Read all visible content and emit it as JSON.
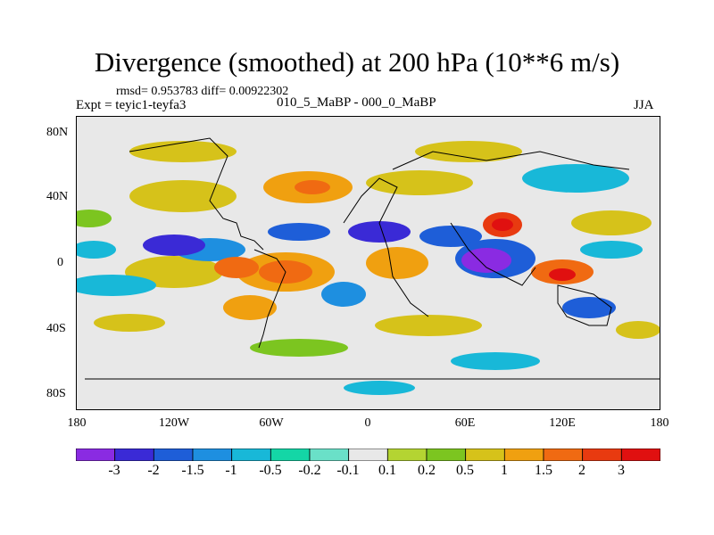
{
  "title": "Divergence (smoothed) at 200 hPa (10**6 m/s)",
  "stats": "rmsd= 0.953783 diff= 0.00922302",
  "expt_label": "Expt = teyic1-teyfa3",
  "case_label": "010_5_MaBP - 000_0_MaBP",
  "season": "JJA",
  "lat_labels": [
    "80N",
    "40N",
    "0",
    "40S",
    "80S"
  ],
  "lon_labels": [
    "180",
    "120W",
    "60W",
    "0",
    "60E",
    "120E",
    "180"
  ],
  "colorbar": {
    "labels": [
      "-3",
      "-2",
      "-1.5",
      "-1",
      "-0.5",
      "-0.2",
      "-0.1",
      "0.1",
      "0.2",
      "0.5",
      "1",
      "1.5",
      "2",
      "3"
    ],
    "colors": [
      "#8a2be2",
      "#3a2ad6",
      "#1e5ed8",
      "#1e8fe0",
      "#18b8d8",
      "#14d6a6",
      "#6ae0c8",
      "#e8e8e8",
      "#b4d432",
      "#7cc520",
      "#d6c21a",
      "#f0a010",
      "#f06a12",
      "#e83a10",
      "#e01010"
    ]
  },
  "map": {
    "background_color": "#e8e8e8",
    "positive_color": "#f07a10",
    "negative_color": "#1e5ed8",
    "coast_color": "#000000"
  }
}
